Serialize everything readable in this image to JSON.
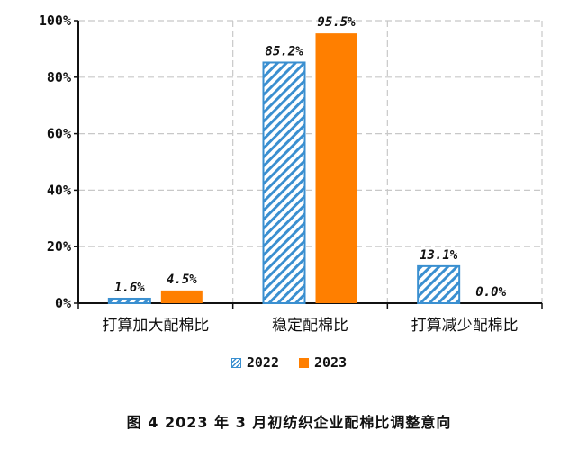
{
  "chart_data": {
    "type": "bar",
    "categories": [
      "打算加大配棉比",
      "稳定配棉比",
      "打算减少配棉比"
    ],
    "series": [
      {
        "name": "2022",
        "values": [
          1.6,
          85.2,
          13.1
        ],
        "color": "#3a8fd0",
        "pattern": "hatched"
      },
      {
        "name": "2023",
        "values": [
          4.5,
          95.5,
          0.0
        ],
        "color": "#ff7f00",
        "pattern": "solid"
      }
    ],
    "data_labels": [
      [
        "1.6%",
        "85.2%",
        "13.1%"
      ],
      [
        "4.5%",
        "95.5%",
        "0.0%"
      ]
    ],
    "ylim": [
      0,
      100
    ],
    "yticks": [
      0,
      20,
      40,
      60,
      80,
      100
    ],
    "ytick_labels": [
      "0%",
      "20%",
      "40%",
      "60%",
      "80%",
      "100%"
    ],
    "grid": true,
    "legend_position": "bottom-center",
    "caption": "图 4   2023 年 3 月初纺织企业配棉比调整意向"
  }
}
